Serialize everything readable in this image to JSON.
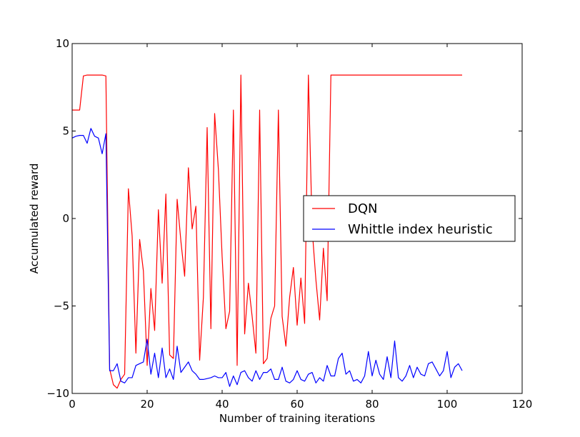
{
  "chart_data": {
    "type": "line",
    "title": "",
    "xlabel": "Number of training iterations",
    "ylabel": "Accumulated reward",
    "xlim": [
      0,
      120
    ],
    "ylim": [
      -10,
      10
    ],
    "xticks": [
      0,
      20,
      40,
      60,
      80,
      100,
      120
    ],
    "yticks": [
      -10,
      -5,
      0,
      5,
      10
    ],
    "xtick_labels": [
      "0",
      "20",
      "40",
      "60",
      "80",
      "100",
      "120"
    ],
    "ytick_labels": [
      "−10",
      "−5",
      "0",
      "5",
      "10"
    ],
    "grid": false,
    "legend_position": "center-right",
    "series": [
      {
        "name": "DQN",
        "color": "#ff0000",
        "values": [
          6.2,
          6.2,
          6.2,
          8.15,
          8.2,
          8.2,
          8.2,
          8.2,
          8.2,
          8.15,
          -8.6,
          -9.5,
          -9.7,
          -9.2,
          -8.9,
          1.7,
          -1.0,
          -7.7,
          -1.2,
          -3.0,
          -8.4,
          -4.0,
          -6.4,
          0.5,
          -3.7,
          1.4,
          -7.8,
          -8.0,
          1.1,
          -1.3,
          -3.3,
          2.9,
          -0.6,
          0.7,
          -8.1,
          -4.5,
          5.2,
          -6.3,
          6.0,
          2.8,
          -2.2,
          -6.3,
          -5.3,
          6.2,
          -8.4,
          8.2,
          -6.6,
          -3.7,
          -5.6,
          -7.7,
          6.2,
          -8.3,
          -8.0,
          -5.7,
          -5.0,
          6.2,
          -5.6,
          -7.3,
          -4.5,
          -2.8,
          -6.1,
          -3.4,
          -6.0,
          8.2,
          -0.6,
          -3.5,
          -5.8,
          -1.7,
          -4.7,
          8.2,
          8.2,
          8.2,
          8.2,
          8.2,
          8.2,
          8.2,
          8.2,
          8.2,
          8.2,
          8.2,
          8.2,
          8.2,
          8.2,
          8.2,
          8.2,
          8.2,
          8.2,
          8.2,
          8.2,
          8.2,
          8.2,
          8.2,
          8.2,
          8.2,
          8.2,
          8.2,
          8.2,
          8.2,
          8.2,
          8.2,
          8.2,
          8.2,
          8.2,
          8.2,
          8.2
        ]
      },
      {
        "name": "Whittle index heuristic",
        "color": "#0000ff",
        "values": [
          4.6,
          4.7,
          4.75,
          4.75,
          4.3,
          5.15,
          4.7,
          4.6,
          3.7,
          4.85,
          -8.7,
          -8.7,
          -8.3,
          -9.3,
          -9.4,
          -9.1,
          -9.1,
          -8.4,
          -8.3,
          -8.2,
          -6.9,
          -8.9,
          -7.7,
          -9.1,
          -7.4,
          -9.1,
          -8.6,
          -9.2,
          -7.3,
          -8.8,
          -8.5,
          -8.2,
          -8.7,
          -8.9,
          -9.2,
          -9.2,
          -9.15,
          -9.1,
          -9.0,
          -9.1,
          -9.1,
          -8.8,
          -9.6,
          -9.0,
          -9.5,
          -8.8,
          -8.7,
          -9.1,
          -9.3,
          -8.7,
          -9.2,
          -8.8,
          -8.8,
          -8.6,
          -9.2,
          -9.2,
          -8.5,
          -9.3,
          -9.4,
          -9.2,
          -8.7,
          -9.2,
          -9.3,
          -8.9,
          -8.8,
          -9.4,
          -9.1,
          -9.3,
          -8.4,
          -9.0,
          -9.0,
          -8.0,
          -7.7,
          -8.9,
          -8.7,
          -9.3,
          -9.2,
          -9.4,
          -9.0,
          -7.6,
          -9.0,
          -8.1,
          -8.9,
          -9.2,
          -7.9,
          -9.1,
          -7.0,
          -9.1,
          -9.3,
          -9.0,
          -8.4,
          -9.1,
          -8.5,
          -8.9,
          -9.0,
          -8.3,
          -8.2,
          -8.6,
          -9.0,
          -8.7,
          -7.6,
          -9.1,
          -8.5,
          -8.3,
          -8.7
        ]
      }
    ]
  }
}
